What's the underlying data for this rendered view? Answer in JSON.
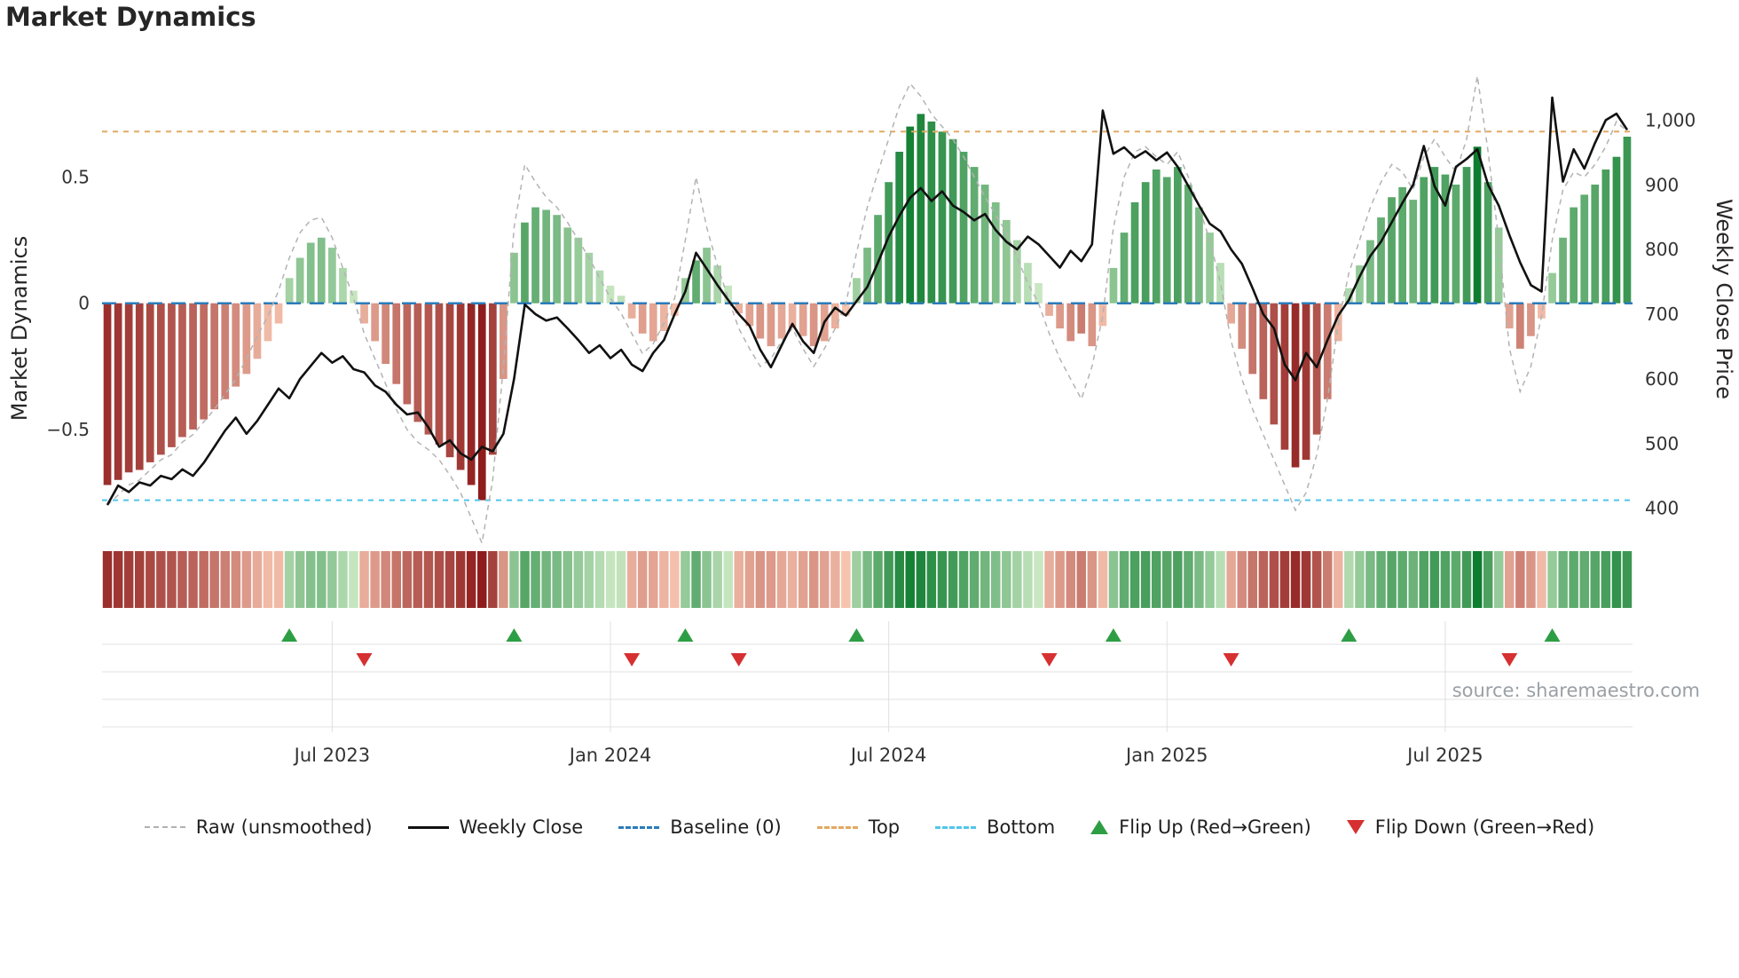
{
  "title": "Market Dynamics",
  "source": "source: sharemaestro.com",
  "legend": [
    {
      "label": "Raw (unsmoothed)"
    },
    {
      "label": "Weekly Close"
    },
    {
      "label": "Baseline (0)"
    },
    {
      "label": "Top"
    },
    {
      "label": "Bottom"
    },
    {
      "label": "Flip Up (Red→Green)"
    },
    {
      "label": "Flip Down (Green→Red)"
    }
  ],
  "chart_data": {
    "type": "bar",
    "title": "Market Dynamics",
    "ylabel_left": "Market Dynamics",
    "ylabel_right": "Weekly Close Price",
    "ylim_left": [
      -0.95,
      0.92
    ],
    "ylim_right": [
      346,
      1076
    ],
    "grid": "marker band only",
    "legend_position": "bottom",
    "panels": [
      "main",
      "heatmap-strip",
      "flip-marker-band"
    ],
    "x_ticks": [
      {
        "index": 21,
        "label": "Jul 2023"
      },
      {
        "index": 47,
        "label": "Jan 2024"
      },
      {
        "index": 73,
        "label": "Jul 2024"
      },
      {
        "index": 99,
        "label": "Jan 2025"
      },
      {
        "index": 125,
        "label": "Jul 2025"
      }
    ],
    "yticks_left": [
      {
        "value": 0.5,
        "label": "0.5"
      },
      {
        "value": 0,
        "label": "0"
      },
      {
        "value": -0.5,
        "label": "−0.5"
      }
    ],
    "yticks_right": [
      {
        "value": 400,
        "label": "400"
      },
      {
        "value": 500,
        "label": "500"
      },
      {
        "value": 600,
        "label": "600"
      },
      {
        "value": 700,
        "label": "700"
      },
      {
        "value": 800,
        "label": "800"
      },
      {
        "value": 900,
        "label": "900"
      },
      {
        "value": 1000,
        "label": "1,000"
      }
    ],
    "reference_lines": {
      "baseline": 0,
      "top": 0.68,
      "bottom": -0.78
    },
    "markers": {
      "flip_up_indices": [
        17,
        38,
        54,
        70,
        94,
        116,
        135
      ],
      "flip_down_indices": [
        24,
        49,
        59,
        88,
        105,
        131
      ]
    },
    "bars": {
      "name": "Market Dynamics (smoothed, weekly)",
      "values": [
        -0.72,
        -0.7,
        -0.67,
        -0.66,
        -0.63,
        -0.6,
        -0.57,
        -0.53,
        -0.5,
        -0.46,
        -0.42,
        -0.38,
        -0.33,
        -0.28,
        -0.22,
        -0.15,
        -0.08,
        0.1,
        0.18,
        0.24,
        0.26,
        0.22,
        0.14,
        0.05,
        -0.08,
        -0.15,
        -0.24,
        -0.32,
        -0.4,
        -0.47,
        -0.52,
        -0.56,
        -0.61,
        -0.66,
        -0.72,
        -0.78,
        -0.6,
        -0.3,
        0.2,
        0.32,
        0.38,
        0.37,
        0.35,
        0.3,
        0.26,
        0.2,
        0.13,
        0.07,
        0.03,
        -0.06,
        -0.12,
        -0.15,
        -0.11,
        -0.05,
        0.1,
        0.17,
        0.22,
        0.15,
        0.07,
        -0.04,
        -0.09,
        -0.14,
        -0.17,
        -0.14,
        -0.1,
        -0.13,
        -0.17,
        -0.15,
        -0.1,
        -0.05,
        0.1,
        0.22,
        0.35,
        0.48,
        0.6,
        0.7,
        0.75,
        0.72,
        0.68,
        0.65,
        0.6,
        0.54,
        0.47,
        0.4,
        0.33,
        0.25,
        0.16,
        0.08,
        -0.05,
        -0.1,
        -0.15,
        -0.12,
        -0.17,
        -0.09,
        0.14,
        0.28,
        0.4,
        0.48,
        0.53,
        0.5,
        0.54,
        0.47,
        0.38,
        0.28,
        0.16,
        -0.08,
        -0.18,
        -0.28,
        -0.38,
        -0.48,
        -0.58,
        -0.65,
        -0.62,
        -0.52,
        -0.38,
        -0.15,
        0.06,
        0.15,
        0.25,
        0.34,
        0.42,
        0.46,
        0.41,
        0.5,
        0.54,
        0.51,
        0.47,
        0.54,
        0.62,
        0.48,
        0.3,
        -0.1,
        -0.18,
        -0.13,
        -0.06,
        0.12,
        0.26,
        0.38,
        0.43,
        0.47,
        0.53,
        0.58,
        0.66
      ]
    },
    "lines": [
      {
        "name": "Raw (unsmoothed)",
        "axis": "left",
        "values": [
          -0.8,
          -0.76,
          -0.72,
          -0.7,
          -0.66,
          -0.62,
          -0.6,
          -0.55,
          -0.52,
          -0.47,
          -0.42,
          -0.36,
          -0.3,
          -0.22,
          -0.13,
          -0.05,
          0.05,
          0.18,
          0.28,
          0.33,
          0.34,
          0.26,
          0.14,
          0.02,
          -0.12,
          -0.22,
          -0.32,
          -0.42,
          -0.5,
          -0.55,
          -0.58,
          -0.62,
          -0.68,
          -0.75,
          -0.85,
          -0.95,
          -0.7,
          -0.25,
          0.3,
          0.55,
          0.48,
          0.42,
          0.38,
          0.32,
          0.25,
          0.18,
          0.1,
          0.02,
          -0.04,
          -0.12,
          -0.2,
          -0.16,
          -0.08,
          0.02,
          0.25,
          0.5,
          0.3,
          0.15,
          0.02,
          -0.1,
          -0.18,
          -0.25,
          -0.22,
          -0.15,
          -0.1,
          -0.18,
          -0.25,
          -0.18,
          -0.1,
          0.0,
          0.2,
          0.38,
          0.52,
          0.65,
          0.78,
          0.87,
          0.82,
          0.75,
          0.7,
          0.65,
          0.58,
          0.5,
          0.42,
          0.35,
          0.28,
          0.18,
          0.08,
          0.0,
          -0.12,
          -0.22,
          -0.3,
          -0.38,
          -0.25,
          -0.05,
          0.3,
          0.5,
          0.6,
          0.62,
          0.58,
          0.55,
          0.6,
          0.5,
          0.38,
          0.25,
          0.08,
          -0.15,
          -0.3,
          -0.42,
          -0.52,
          -0.62,
          -0.72,
          -0.82,
          -0.75,
          -0.6,
          -0.38,
          -0.08,
          0.12,
          0.25,
          0.38,
          0.48,
          0.55,
          0.52,
          0.45,
          0.58,
          0.65,
          0.58,
          0.52,
          0.65,
          0.9,
          0.6,
          0.25,
          -0.18,
          -0.35,
          -0.25,
          -0.05,
          0.25,
          0.45,
          0.52,
          0.5,
          0.55,
          0.62,
          0.72,
          0.68
        ]
      },
      {
        "name": "Weekly Close",
        "axis": "right",
        "values": [
          405,
          435,
          425,
          440,
          435,
          450,
          445,
          460,
          450,
          470,
          495,
          520,
          540,
          515,
          535,
          560,
          585,
          570,
          600,
          620,
          640,
          625,
          635,
          615,
          610,
          590,
          580,
          560,
          545,
          548,
          525,
          495,
          505,
          485,
          475,
          495,
          488,
          515,
          600,
          715,
          700,
          690,
          695,
          678,
          660,
          640,
          652,
          632,
          645,
          622,
          612,
          640,
          660,
          700,
          735,
          795,
          770,
          745,
          722,
          700,
          682,
          645,
          618,
          652,
          685,
          658,
          640,
          688,
          710,
          698,
          720,
          742,
          780,
          820,
          852,
          880,
          895,
          875,
          890,
          868,
          858,
          845,
          855,
          830,
          812,
          800,
          820,
          808,
          790,
          772,
          798,
          782,
          808,
          1015,
          948,
          958,
          942,
          952,
          938,
          950,
          928,
          898,
          868,
          840,
          828,
          800,
          778,
          740,
          700,
          678,
          622,
          598,
          640,
          618,
          660,
          698,
          722,
          758,
          790,
          812,
          842,
          872,
          900,
          960,
          898,
          868,
          928,
          940,
          955,
          900,
          868,
          822,
          780,
          745,
          735,
          1035,
          905,
          955,
          925,
          965,
          1000,
          1010,
          985
        ]
      }
    ],
    "colors": {
      "green_light": "#c9e7c2",
      "green_dark": "#0e7d2f",
      "red_light": "#f6c3ae",
      "red_dark": "#8e1c1c",
      "close": "#111111",
      "raw": "#b3b3b3",
      "baseline": "#2b7bba",
      "top": "#e2a963",
      "bottom": "#52c5ea",
      "flip_up": "#2e9e44",
      "flip_down": "#d63031",
      "grid": "#e0e0e0",
      "tick": "#333333"
    }
  }
}
